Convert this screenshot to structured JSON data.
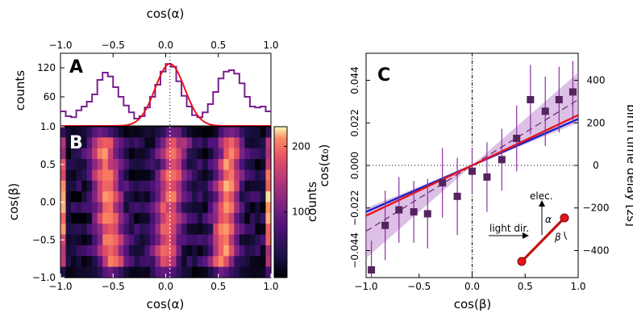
{
  "chart_data": [
    {
      "panel": "A",
      "type": "line",
      "panel_label": "A",
      "xlabel": "cos(α)",
      "ylabel": "counts",
      "xlim": [
        -1.0,
        1.0
      ],
      "ylim": [
        0,
        150
      ],
      "xticks": [
        -1.0,
        -0.5,
        0.0,
        0.5,
        1.0
      ],
      "xtick_labels": [
        "−1.0",
        "−0.5",
        "0.0",
        "0.5",
        "1.0"
      ],
      "yticks": [
        0,
        60,
        120
      ],
      "ytick_labels": [
        "0",
        "60",
        "120"
      ],
      "series": [
        {
          "name": "histogram",
          "color": "#7a1f8f",
          "x": [
            -0.975,
            -0.925,
            -0.875,
            -0.825,
            -0.775,
            -0.725,
            -0.675,
            -0.625,
            -0.575,
            -0.525,
            -0.475,
            -0.425,
            -0.375,
            -0.325,
            -0.275,
            -0.225,
            -0.175,
            -0.125,
            -0.075,
            -0.025,
            0.025,
            0.075,
            0.125,
            0.175,
            0.225,
            0.275,
            0.325,
            0.375,
            0.425,
            0.475,
            0.525,
            0.575,
            0.625,
            0.675,
            0.725,
            0.775,
            0.825,
            0.875,
            0.925,
            0.975
          ],
          "values": [
            30,
            20,
            18,
            32,
            40,
            50,
            65,
            95,
            110,
            102,
            80,
            60,
            42,
            28,
            15,
            20,
            38,
            60,
            85,
            112,
            128,
            122,
            92,
            62,
            40,
            22,
            18,
            28,
            45,
            70,
            98,
            112,
            115,
            108,
            88,
            60,
            40,
            38,
            40,
            30
          ]
        },
        {
          "name": "gaussian fit",
          "color": "#e8141c",
          "mu": 0.04,
          "sigma": 0.14,
          "amplitude": 128
        }
      ],
      "reference_lines": [
        {
          "x": 0.04,
          "style": "dotted"
        }
      ]
    },
    {
      "panel": "B",
      "type": "heatmap",
      "panel_label": "B",
      "xlabel": "cos(α)",
      "ylabel": "cos(β)",
      "xlim": [
        -1.0,
        1.0
      ],
      "ylim": [
        -1.0,
        1.0
      ],
      "xticks": [
        -1.0,
        -0.5,
        0.0,
        0.5,
        1.0
      ],
      "xtick_labels": [
        "−1.0",
        "−0.5",
        "0.0",
        "0.5",
        "1.0"
      ],
      "yticks": [
        -1.0,
        -0.5,
        0.0,
        0.5,
        1.0
      ],
      "ytick_labels": [
        "−1.0",
        "−0.5",
        "0.0",
        "0.5",
        "1.0"
      ],
      "colorbar": {
        "label": "counts",
        "range": [
          0,
          230
        ],
        "ticks": [
          100,
          200
        ],
        "tick_labels": [
          "100",
          "200"
        ],
        "colormap": "magma"
      },
      "grid": {
        "nx": 40,
        "ny": 14,
        "description": "cos(beta) rows, cos(alpha) columns; intensity peaks near cos(alpha) = -0.55, 0.04, 0.58 and edges at ±0.97"
      },
      "reference_lines": [
        {
          "x": 0.04,
          "style": "dotted",
          "color": "#ffffff"
        }
      ]
    },
    {
      "panel": "C",
      "type": "scatter",
      "panel_label": "C",
      "xlabel": "cos(β)",
      "ylabel": "cos(α₀)",
      "ylabel_right": "birth time delay [zs]",
      "xlim": [
        -1.0,
        1.0
      ],
      "ylim": [
        -0.058,
        0.058
      ],
      "xticks": [
        -1.0,
        -0.5,
        0.0,
        0.5,
        1.0
      ],
      "xtick_labels": [
        "−1.0",
        "−0.5",
        "0.0",
        "0.5",
        "1.0"
      ],
      "yticks": [
        -0.044,
        -0.022,
        0.0,
        0.022,
        0.044
      ],
      "ytick_labels": [
        "−0.044",
        "−0.022",
        "0.000",
        "0.022",
        "0.044"
      ],
      "yticks_right": [
        -400,
        -200,
        0,
        200,
        400
      ],
      "ytick_labels_right": [
        "−400",
        "−200",
        "0",
        "200",
        "400"
      ],
      "series": [
        {
          "name": "data",
          "color": "#54245e",
          "marker": "square",
          "x": [
            -0.95,
            -0.82,
            -0.69,
            -0.55,
            -0.42,
            -0.28,
            -0.14,
            0.0,
            0.14,
            0.28,
            0.42,
            0.55,
            0.69,
            0.82,
            0.95
          ],
          "values": [
            -0.054,
            -0.031,
            -0.023,
            -0.024,
            -0.025,
            -0.009,
            -0.016,
            -0.003,
            -0.006,
            0.003,
            0.014,
            0.034,
            0.028,
            0.034,
            0.038
          ],
          "err": [
            0.015,
            0.018,
            0.017,
            0.016,
            0.018,
            0.018,
            0.02,
            0.012,
            0.018,
            0.016,
            0.017,
            0.018,
            0.018,
            0.017,
            0.016
          ]
        },
        {
          "name": "fit (dashed)",
          "color": "#6e2070",
          "x": [
            -1,
            1
          ],
          "values": [
            -0.034,
            0.034
          ]
        },
        {
          "name": "red line",
          "color": "#e8141c",
          "x": [
            -1,
            1
          ],
          "values": [
            -0.026,
            0.026
          ]
        },
        {
          "name": "blue line",
          "color": "#1a22c4",
          "x": [
            -1,
            1
          ],
          "values": [
            -0.024,
            0.024
          ]
        }
      ],
      "confidence_band": {
        "color": "#c08ccf",
        "lower": [
          -0.048,
          0.022
        ],
        "upper": [
          -0.022,
          0.048
        ]
      },
      "reference_lines": [
        {
          "x": 0,
          "style": "dashdot"
        },
        {
          "y": 0,
          "style": "dotted"
        }
      ],
      "inset": {
        "light_dir_label": "light dir.",
        "elec_label": "elec.",
        "alpha_label": "α",
        "beta_label": "β"
      }
    }
  ]
}
